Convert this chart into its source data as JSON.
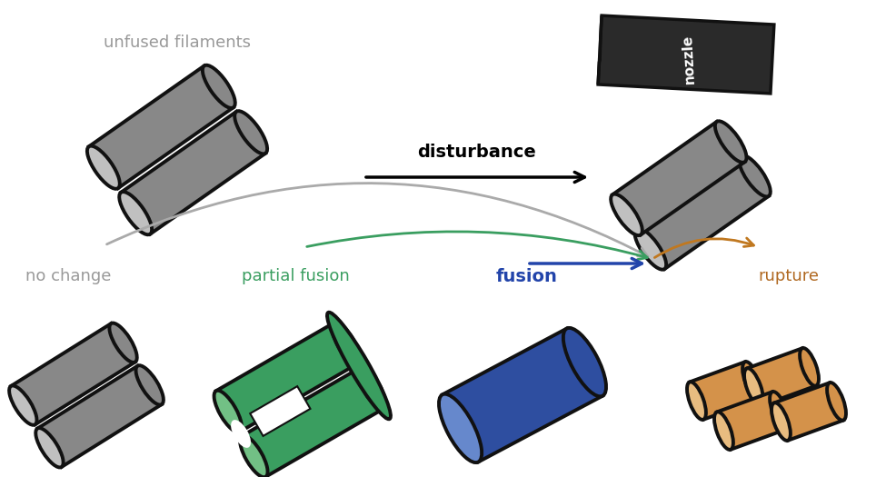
{
  "bg_color": "#ffffff",
  "gray_fill": "#888888",
  "gray_light": "#c0c0c0",
  "gray_outline": "#111111",
  "green_dark": "#2e7d4f",
  "green_fill": "#3a9e60",
  "green_light": "#72c085",
  "green_outline": "#111111",
  "blue_dark": "#1a3a8a",
  "blue_fill": "#2e4ea0",
  "blue_light": "#6688cc",
  "blue_outline": "#111111",
  "orange_fill": "#d4924a",
  "orange_light": "#e8bc80",
  "orange_outline": "#111111",
  "nozzle_fill": "#2a2a2a",
  "nozzle_outline": "#111111",
  "arrow_gray": "#aaaaaa",
  "arrow_green": "#3a9e60",
  "arrow_blue": "#2244aa",
  "arrow_orange": "#c07820",
  "label_gray": "#999999",
  "label_green": "#3a9e60",
  "label_blue": "#2244aa",
  "label_orange": "#b06820",
  "texts": {
    "unfused": "unfused filaments",
    "disturbance": "disturbance",
    "no_change": "no change",
    "partial_fusion": "partial fusion",
    "fusion": "fusion",
    "rupture": "rupture",
    "nozzle": "nozzle"
  }
}
